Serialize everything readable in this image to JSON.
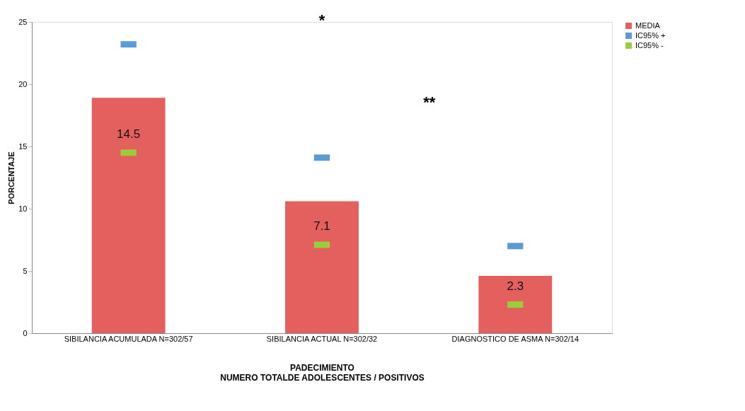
{
  "chart_data": {
    "type": "bar",
    "xlabel": "PADECIMIENTO\nNUMERO TOTALDE ADOLESCENTES / POSITIVOS",
    "ylabel": "PORCENTAJE",
    "categories": [
      "SIBILANCIA ACUMULADA N=302/57",
      "SIBILANCIA ACTUAL N=302/32",
      "DIAGNOSTICO DE ASMA N=302/14"
    ],
    "series": [
      {
        "name": "MEDIA",
        "color": "#e4605e",
        "values": [
          18.9,
          10.6,
          4.6
        ]
      },
      {
        "name": "IC95% +",
        "type": "scatter",
        "color": "#5b9bd5",
        "values": [
          23.2,
          14.1,
          7.0
        ]
      },
      {
        "name": "IC95% -",
        "type": "scatter",
        "color": "#9acd3a",
        "values": [
          14.5,
          7.1,
          2.3
        ],
        "value_labels": [
          "14.5",
          "7.1",
          "2.3"
        ]
      }
    ],
    "ylim": [
      0,
      25
    ],
    "yticks": [
      0,
      5,
      10,
      15,
      20,
      25
    ],
    "grid": false,
    "legend": "right",
    "annotations": [
      "*",
      "**"
    ]
  }
}
